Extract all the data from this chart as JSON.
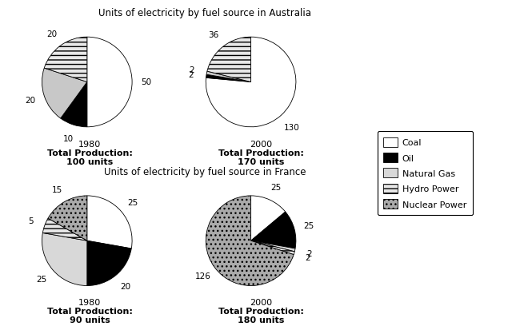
{
  "title_australia": "Units of electricity by fuel source in Australia",
  "title_france": "Units of electricity by fuel source in France",
  "australia_1980": {
    "values": [
      50,
      10,
      20,
      20
    ],
    "labels": [
      "50",
      "10",
      "20",
      "20"
    ],
    "year": "1980",
    "total_line1": "Total Production:",
    "total_line2": "100 units",
    "colors": [
      "white",
      "black",
      "#c8c8c8",
      "#e8e8e8"
    ],
    "hatches": [
      "",
      "",
      "",
      "---"
    ]
  },
  "australia_2000": {
    "values": [
      130,
      2,
      2,
      36
    ],
    "labels": [
      "130",
      "2",
      "2",
      "36"
    ],
    "year": "2000",
    "total_line1": "Total Production:",
    "total_line2": "170 units",
    "colors": [
      "white",
      "black",
      "#c8c8c8",
      "#e8e8e8"
    ],
    "hatches": [
      "",
      "",
      "",
      "---"
    ]
  },
  "france_1980": {
    "values": [
      25,
      20,
      25,
      5,
      15
    ],
    "labels": [
      "25",
      "20",
      "25",
      "5",
      "15"
    ],
    "year": "1980",
    "total_line1": "Total Production:",
    "total_line2": "90 units",
    "colors": [
      "white",
      "black",
      "#d8d8d8",
      "#e8e8e8",
      "#aaaaaa"
    ],
    "hatches": [
      "",
      "",
      "",
      "---",
      "..."
    ]
  },
  "france_2000": {
    "values": [
      25,
      25,
      2,
      2,
      126
    ],
    "labels": [
      "25",
      "25",
      "2",
      "2",
      "126"
    ],
    "year": "2000",
    "total_line1": "Total Production:",
    "total_line2": "180 units",
    "colors": [
      "white",
      "black",
      "#d8d8d8",
      "#e8e8e8",
      "#aaaaaa"
    ],
    "hatches": [
      "",
      "",
      "",
      "---",
      "..."
    ]
  },
  "legend_labels": [
    "Coal",
    "Oil",
    "Natural Gas",
    "Hydro Power",
    "Nuclear Power"
  ],
  "legend_colors": [
    "white",
    "black",
    "#d8d8d8",
    "#e8e8e8",
    "#aaaaaa"
  ],
  "legend_hatches": [
    "",
    "",
    "",
    "---",
    "..."
  ]
}
